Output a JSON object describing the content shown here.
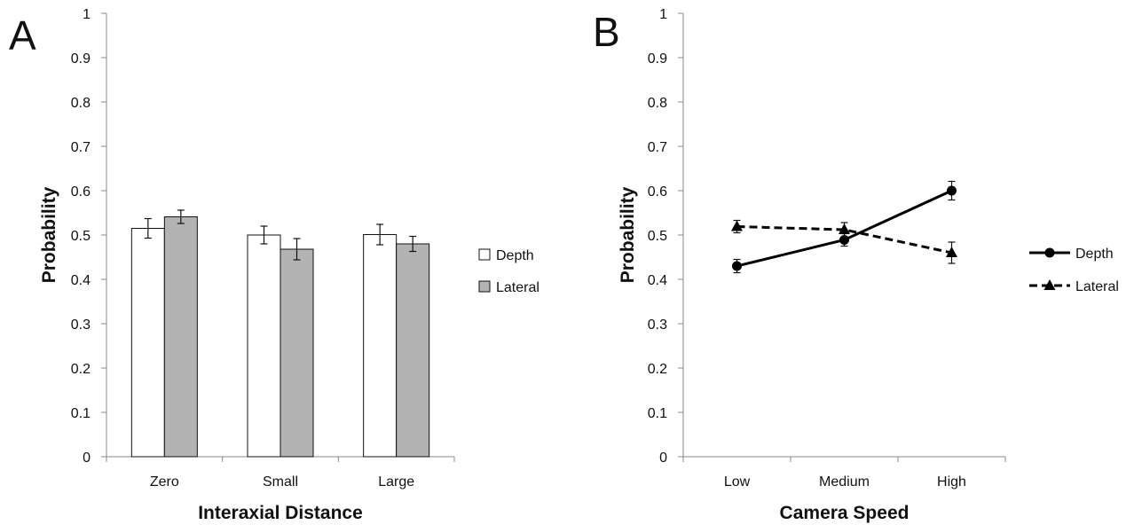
{
  "chart_data": [
    {
      "panel_label": "A",
      "type": "bar",
      "xlabel": "Interaxial Distance",
      "ylabel": "Probability",
      "ylim": [
        0,
        1
      ],
      "yticks": [
        "0",
        "0.1",
        "0.2",
        "0.3",
        "0.4",
        "0.5",
        "0.6",
        "0.7",
        "0.8",
        "0.9",
        "1"
      ],
      "categories": [
        "Zero",
        "Small",
        "Large"
      ],
      "grid": false,
      "legend_position": "right",
      "series": [
        {
          "name": "Depth",
          "values": [
            0.515,
            0.5,
            0.501
          ],
          "errors": [
            0.022,
            0.02,
            0.023
          ],
          "color": "#ffffff"
        },
        {
          "name": "Lateral",
          "values": [
            0.541,
            0.468,
            0.48
          ],
          "errors": [
            0.015,
            0.024,
            0.017
          ],
          "color": "#b3b3b3"
        }
      ]
    },
    {
      "panel_label": "B",
      "type": "line",
      "xlabel": "Camera Speed",
      "ylabel": "Probability",
      "ylim": [
        0,
        1
      ],
      "yticks": [
        "0",
        "0.1",
        "0.2",
        "0.3",
        "0.4",
        "0.5",
        "0.6",
        "0.7",
        "0.8",
        "0.9",
        "1"
      ],
      "categories": [
        "Low",
        "Medium",
        "High"
      ],
      "grid": false,
      "legend_position": "right",
      "series": [
        {
          "name": "Depth",
          "values": [
            0.43,
            0.489,
            0.6
          ],
          "errors": [
            0.015,
            0.014,
            0.021
          ],
          "marker": "circle",
          "line": "solid",
          "color": "#000000"
        },
        {
          "name": "Lateral",
          "values": [
            0.519,
            0.512,
            0.46
          ],
          "errors": [
            0.014,
            0.016,
            0.024
          ],
          "marker": "triangle",
          "line": "dashed",
          "color": "#000000"
        }
      ]
    }
  ]
}
